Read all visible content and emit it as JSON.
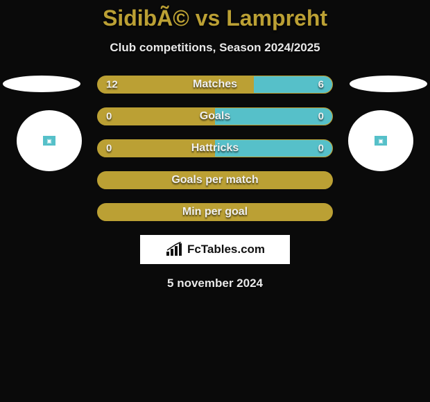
{
  "title": "SidibÃ© vs Lampreht",
  "subtitle": "Club competitions, Season 2024/2025",
  "date": "5 november 2024",
  "brand": "FcTables.com",
  "colors": {
    "left": "#bba034",
    "right": "#56c0c9",
    "background": "#0a0a0a",
    "text": "#e8e8e8",
    "accent": "#bba034"
  },
  "badges": {
    "left_color": "#56c0c9",
    "right_color": "#56c0c9"
  },
  "bars": [
    {
      "label": "Matches",
      "left_value": "12",
      "right_value": "6",
      "left_pct": 66.6,
      "right_pct": 33.4,
      "show_values": true
    },
    {
      "label": "Goals",
      "left_value": "0",
      "right_value": "0",
      "left_pct": 50,
      "right_pct": 50,
      "show_values": true
    },
    {
      "label": "Hattricks",
      "left_value": "0",
      "right_value": "0",
      "left_pct": 50,
      "right_pct": 50,
      "show_values": true
    },
    {
      "label": "Goals per match",
      "left_value": "",
      "right_value": "",
      "left_pct": 100,
      "right_pct": 0,
      "show_values": false
    },
    {
      "label": "Min per goal",
      "left_value": "",
      "right_value": "",
      "left_pct": 100,
      "right_pct": 0,
      "show_values": false
    }
  ]
}
